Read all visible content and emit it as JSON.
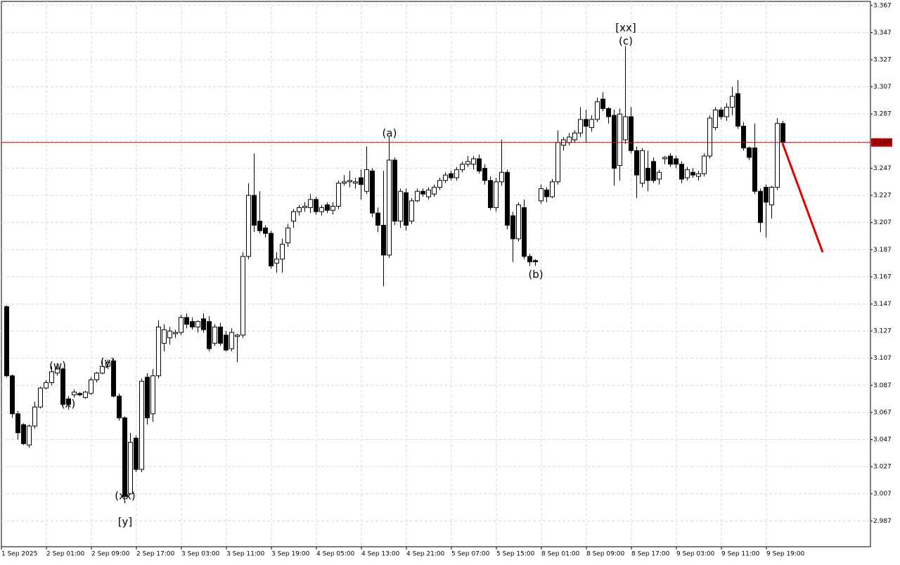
{
  "chart_data": {
    "type": "candlestick",
    "categories": [
      "1 Sep 2025",
      null,
      null,
      null,
      null,
      null,
      null,
      null,
      "2 Sep 01:00",
      null,
      null,
      null,
      null,
      null,
      null,
      null,
      "2 Sep 09:00",
      null,
      null,
      null,
      null,
      null,
      null,
      null,
      "2 Sep 17:00",
      null,
      null,
      null,
      null,
      null,
      null,
      null,
      "3 Sep 03:00",
      null,
      null,
      null,
      null,
      null,
      null,
      null,
      "3 Sep 11:00",
      null,
      null,
      null,
      null,
      null,
      null,
      null,
      "3 Sep 19:00",
      null,
      null,
      null,
      null,
      null,
      null,
      null,
      "4 Sep 05:00",
      null,
      null,
      null,
      null,
      null,
      null,
      null,
      "4 Sep 13:00",
      null,
      null,
      null,
      null,
      null,
      null,
      null,
      "4 Sep 21:00",
      null,
      null,
      null,
      null,
      null,
      null,
      null,
      "5 Sep 07:00",
      null,
      null,
      null,
      null,
      null,
      null,
      null,
      "5 Sep 15:00",
      null,
      null,
      null,
      null,
      null,
      null,
      null,
      "8 Sep 01:00",
      null,
      null,
      null,
      null,
      null,
      null,
      null,
      "8 Sep 09:00",
      null,
      null,
      null,
      null,
      null,
      null,
      null,
      "8 Sep 17:00",
      null,
      null,
      null,
      null,
      null,
      null,
      null,
      "9 Sep 03:00",
      null,
      null,
      null,
      null,
      null,
      null,
      null,
      "9 Sep 11:00",
      null,
      null,
      null,
      null,
      null,
      null,
      null,
      "9 Sep 19:00",
      null,
      null
    ],
    "open": [
      3.145,
      3.094,
      3.066,
      3.058,
      3.043,
      3.057,
      3.071,
      3.085,
      3.089,
      3.096,
      3.099,
      3.077,
      3.08,
      3.081,
      3.078,
      3.081,
      3.091,
      3.096,
      3.101,
      3.105,
      3.079,
      3.063,
      3.007,
      3.048,
      3.025,
      3.093,
      3.066,
      3.094,
      3.118,
      3.122,
      3.125,
      3.126,
      3.137,
      3.134,
      3.13,
      3.136,
      3.134,
      3.118,
      3.13,
      3.124,
      3.114,
      3.123,
      3.124,
      3.182,
      3.227,
      3.208,
      3.203,
      3.199,
      3.177,
      3.18,
      3.192,
      3.208,
      3.215,
      3.218,
      3.218,
      3.224,
      3.215,
      3.22,
      3.216,
      3.219,
      3.236,
      3.237,
      3.236,
      3.24,
      3.23,
      3.245,
      3.214,
      3.205,
      3.183,
      3.253,
      3.208,
      3.229,
      3.208,
      3.223,
      3.23,
      3.226,
      3.228,
      3.233,
      3.238,
      3.243,
      3.24,
      3.246,
      3.25,
      3.25,
      3.254,
      3.247,
      3.238,
      3.218,
      3.237,
      3.244,
      3.212,
      3.195,
      3.218,
      3.182,
      3.179,
      3.223,
      3.231,
      3.226,
      3.237,
      3.264,
      3.266,
      3.268,
      3.273,
      3.283,
      3.277,
      3.283,
      3.298,
      3.291,
      3.286,
      3.249,
      3.268,
      3.285,
      3.26,
      3.236,
      3.247,
      3.252,
      3.239,
      3.254,
      3.256,
      3.254,
      3.25,
      3.24,
      3.244,
      3.241,
      3.243,
      3.256,
      3.277,
      3.29,
      3.285,
      3.292,
      3.302,
      3.278,
      3.262,
      3.262,
      3.23,
      3.233,
      3.22,
      3.233,
      3.28
    ],
    "high": [
      3.146,
      3.095,
      3.068,
      3.059,
      3.058,
      3.075,
      3.086,
      3.091,
      3.101,
      3.101,
      3.1,
      3.079,
      3.084,
      3.082,
      3.083,
      3.093,
      3.097,
      3.107,
      3.106,
      3.107,
      3.081,
      3.064,
      3.052,
      3.05,
      3.092,
      3.096,
      3.099,
      3.135,
      3.132,
      3.13,
      3.128,
      3.139,
      3.14,
      3.137,
      3.135,
      3.14,
      3.138,
      3.132,
      3.133,
      3.127,
      3.129,
      3.125,
      3.185,
      3.236,
      3.258,
      3.23,
      3.205,
      3.201,
      3.185,
      3.195,
      3.206,
      3.217,
      3.22,
      3.222,
      3.228,
      3.226,
      3.22,
      3.222,
      3.222,
      3.238,
      3.242,
      3.245,
      3.24,
      3.246,
      3.263,
      3.247,
      3.218,
      3.245,
      3.27,
      3.255,
      3.232,
      3.232,
      3.225,
      3.232,
      3.232,
      3.233,
      3.235,
      3.24,
      3.244,
      3.245,
      3.248,
      3.252,
      3.256,
      3.256,
      3.257,
      3.25,
      3.241,
      3.24,
      3.268,
      3.246,
      3.215,
      3.222,
      3.224,
      3.184,
      3.18,
      3.235,
      3.233,
      3.239,
      3.275,
      3.27,
      3.273,
      3.275,
      3.292,
      3.29,
      3.286,
      3.299,
      3.303,
      3.292,
      3.29,
      3.291,
      3.337,
      3.292,
      3.263,
      3.262,
      3.26,
      3.255,
      3.246,
      3.256,
      3.258,
      3.256,
      3.252,
      3.248,
      3.247,
      3.245,
      3.258,
      3.286,
      3.292,
      3.292,
      3.295,
      3.307,
      3.312,
      3.281,
      3.263,
      3.28,
      3.232,
      3.235,
      3.234,
      3.284,
      3.282
    ],
    "low": [
      3.093,
      3.063,
      3.047,
      3.043,
      3.041,
      3.055,
      3.07,
      3.084,
      3.087,
      3.094,
      3.072,
      3.069,
      3.078,
      3.079,
      3.077,
      3.08,
      3.089,
      3.095,
      3.099,
      3.078,
      3.061,
      3.0,
      3.008,
      3.023,
      3.023,
      3.058,
      3.06,
      3.092,
      3.112,
      3.117,
      3.122,
      3.124,
      3.129,
      3.128,
      3.126,
      3.126,
      3.112,
      3.116,
      3.116,
      3.112,
      3.112,
      3.104,
      3.122,
      3.18,
      3.2,
      3.199,
      3.196,
      3.173,
      3.17,
      3.17,
      3.189,
      3.203,
      3.212,
      3.215,
      3.214,
      3.213,
      3.212,
      3.214,
      3.213,
      3.217,
      3.234,
      3.233,
      3.232,
      3.224,
      3.228,
      3.211,
      3.2,
      3.16,
      3.181,
      3.205,
      3.203,
      3.201,
      3.206,
      3.222,
      3.226,
      3.224,
      3.226,
      3.231,
      3.236,
      3.238,
      3.238,
      3.244,
      3.248,
      3.246,
      3.243,
      3.235,
      3.216,
      3.215,
      3.234,
      3.202,
      3.178,
      3.193,
      3.18,
      3.175,
      3.175,
      3.221,
      3.222,
      3.225,
      3.235,
      3.26,
      3.264,
      3.266,
      3.27,
      3.266,
      3.274,
      3.281,
      3.289,
      3.28,
      3.234,
      3.238,
      3.265,
      3.258,
      3.225,
      3.233,
      3.23,
      3.236,
      3.235,
      3.25,
      3.248,
      3.247,
      3.236,
      3.238,
      3.24,
      3.238,
      3.241,
      3.254,
      3.275,
      3.283,
      3.282,
      3.286,
      3.276,
      3.26,
      3.253,
      3.228,
      3.2,
      3.196,
      3.21,
      3.231,
      3.264
    ],
    "close": [
      3.094,
      3.066,
      3.052,
      3.044,
      3.057,
      3.071,
      3.085,
      3.089,
      3.097,
      3.099,
      3.073,
      3.073,
      3.082,
      3.08,
      3.082,
      3.091,
      3.096,
      3.101,
      3.104,
      3.079,
      3.063,
      3.005,
      3.045,
      3.025,
      3.09,
      3.063,
      3.094,
      3.13,
      3.128,
      3.127,
      3.126,
      3.137,
      3.132,
      3.13,
      3.134,
      3.128,
      3.114,
      3.13,
      3.118,
      3.113,
      3.126,
      3.124,
      3.182,
      3.227,
      3.205,
      3.201,
      3.199,
      3.175,
      3.18,
      3.191,
      3.203,
      3.215,
      3.218,
      3.219,
      3.224,
      3.215,
      3.218,
      3.216,
      3.219,
      3.236,
      3.237,
      3.238,
      3.237,
      3.235,
      3.246,
      3.214,
      3.205,
      3.183,
      3.253,
      3.208,
      3.23,
      3.205,
      3.223,
      3.23,
      3.228,
      3.231,
      3.233,
      3.238,
      3.242,
      3.24,
      3.246,
      3.25,
      3.252,
      3.254,
      3.245,
      3.238,
      3.218,
      3.237,
      3.244,
      3.205,
      3.195,
      3.22,
      3.182,
      3.178,
      3.178,
      3.232,
      3.226,
      3.237,
      3.266,
      3.268,
      3.27,
      3.273,
      3.283,
      3.278,
      3.283,
      3.296,
      3.291,
      3.285,
      3.247,
      3.287,
      3.285,
      3.26,
      3.242,
      3.26,
      3.238,
      3.238,
      3.244,
      3.255,
      3.25,
      3.25,
      3.239,
      3.246,
      3.242,
      3.243,
      3.256,
      3.284,
      3.29,
      3.285,
      3.292,
      3.3,
      3.278,
      3.262,
      3.255,
      3.23,
      3.207,
      3.222,
      3.233,
      3.28,
      3.266
    ],
    "up_color": "#ffffff",
    "down_color": "#000000",
    "outline_color": "#000000",
    "ylim": [
      2.968,
      3.37
    ],
    "yticks": [
      3.367,
      3.347,
      3.327,
      3.307,
      3.287,
      3.267,
      3.247,
      3.227,
      3.207,
      3.187,
      3.167,
      3.147,
      3.127,
      3.107,
      3.087,
      3.067,
      3.047,
      3.027,
      3.007,
      2.987
    ],
    "grid": true,
    "current_price": 3.266,
    "current_price_color": "#c00000",
    "annotations": [
      {
        "text": "[xx]",
        "color": "#33c733"
      },
      {
        "text": "(c)",
        "color": "#1f1fe0"
      },
      {
        "text": "(a)",
        "color": "#1f1fe0"
      },
      {
        "text": "(b)",
        "color": "#1f1fe0"
      },
      {
        "text": "(w)",
        "color": "#1f1fe0"
      },
      {
        "text": "(x)",
        "color": "#1f1fe0"
      },
      {
        "text": "(y)",
        "color": "#1f1fe0"
      },
      {
        "text": "(xx)",
        "color": "#1f1fe0"
      },
      {
        "text": "[y]",
        "color": "#33c733"
      }
    ]
  }
}
